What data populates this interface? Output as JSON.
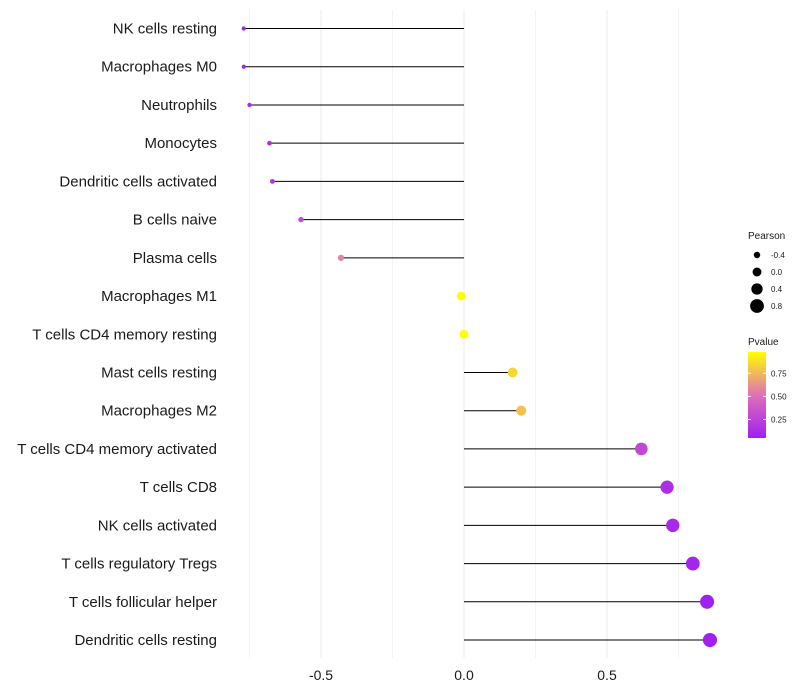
{
  "chart_data": {
    "type": "lollipop",
    "categories": [
      "NK cells resting",
      "Macrophages M0",
      "Neutrophils",
      "Monocytes",
      "Dendritic cells activated",
      "B cells naive",
      "Plasma cells",
      "Macrophages M1",
      "T cells CD4 memory resting",
      "Mast cells resting",
      "Macrophages M2",
      "T cells CD4 memory activated",
      "T cells CD8",
      "NK cells activated",
      "T cells regulatory  Tregs",
      "T cells follicular helper",
      "Dendritic cells resting"
    ],
    "pearson": [
      -0.77,
      -0.77,
      -0.75,
      -0.68,
      -0.67,
      -0.57,
      -0.43,
      -0.01,
      0.0,
      0.17,
      0.2,
      0.62,
      0.71,
      0.73,
      0.8,
      0.85,
      0.86
    ],
    "pvalue": [
      0.06,
      0.07,
      0.1,
      0.14,
      0.17,
      0.3,
      0.58,
      0.97,
      0.99,
      0.85,
      0.78,
      0.28,
      0.14,
      0.11,
      0.08,
      0.05,
      0.04
    ],
    "xlim": [
      -0.78,
      0.93
    ],
    "xticks": [
      -0.5,
      0.0,
      0.5
    ],
    "xtick_labels": [
      "-0.5",
      "0.0",
      "0.5"
    ],
    "legend_size": {
      "title": "Pearson",
      "values": [
        -0.4,
        0.0,
        0.4,
        0.8
      ],
      "labels": [
        "-0.4",
        "0.0",
        "0.4",
        "0.8"
      ]
    },
    "legend_color": {
      "title": "Pvalue",
      "range": [
        0.05,
        0.98
      ],
      "ticks": [
        0.25,
        0.5,
        0.75
      ],
      "tick_labels": [
        "0.25",
        "0.50",
        "0.75"
      ],
      "low_color": "#a020f0",
      "high_color": "#ffff00"
    },
    "colors": {
      "stem": "#000000",
      "grid": "#ebebeb"
    }
  }
}
